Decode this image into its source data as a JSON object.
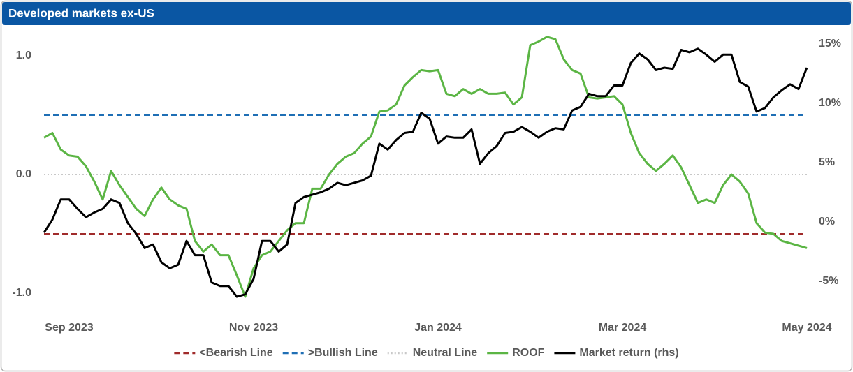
{
  "chart_data": {
    "type": "line",
    "title": "Developed markets ex-US",
    "categories": [
      null,
      null,
      null,
      "Sep 2023",
      null,
      null,
      null,
      null,
      null,
      null,
      null,
      null,
      null,
      null,
      null,
      null,
      null,
      null,
      null,
      null,
      null,
      null,
      null,
      null,
      null,
      "Nov 2023",
      null,
      null,
      null,
      null,
      null,
      null,
      null,
      null,
      null,
      null,
      null,
      null,
      null,
      null,
      null,
      null,
      null,
      null,
      null,
      null,
      null,
      "Jan 2024",
      null,
      null,
      null,
      null,
      null,
      null,
      null,
      null,
      null,
      null,
      null,
      null,
      null,
      null,
      null,
      null,
      null,
      null,
      null,
      null,
      null,
      "Mar 2024",
      null,
      null,
      null,
      null,
      null,
      null,
      null,
      null,
      null,
      null,
      null,
      null,
      null,
      null,
      null,
      null,
      null,
      null,
      null,
      null,
      null,
      "May 2024"
    ],
    "reference_lines": [
      {
        "name": "<Bearish Line",
        "color": "#a02b2b",
        "value": -0.5,
        "style": "dashed"
      },
      {
        "name": ">Bullish Line",
        "color": "#1f6fb5",
        "value": 0.5,
        "style": "dashed"
      },
      {
        "name": "Neutral Line",
        "color": "#c8c8c8",
        "value": 0.0,
        "style": "dotted"
      }
    ],
    "series": [
      {
        "name": "ROOF",
        "color": "#5bb544",
        "axis": "y",
        "values": [
          0.31,
          0.35,
          0.21,
          0.16,
          0.15,
          0.07,
          -0.06,
          -0.21,
          0.03,
          -0.09,
          -0.19,
          -0.29,
          -0.35,
          -0.21,
          -0.11,
          -0.21,
          -0.26,
          -0.29,
          -0.56,
          -0.65,
          -0.59,
          -0.68,
          -0.68,
          -0.85,
          -1.03,
          -0.79,
          -0.68,
          -0.65,
          -0.56,
          -0.47,
          -0.41,
          -0.41,
          -0.12,
          -0.12,
          0.0,
          0.09,
          0.15,
          0.18,
          0.26,
          0.32,
          0.53,
          0.54,
          0.59,
          0.75,
          0.82,
          0.88,
          0.87,
          0.88,
          0.68,
          0.66,
          0.72,
          0.68,
          0.72,
          0.68,
          0.68,
          0.69,
          0.59,
          0.65,
          1.09,
          1.12,
          1.16,
          1.14,
          0.97,
          0.88,
          0.85,
          0.65,
          0.64,
          0.65,
          0.66,
          0.59,
          0.35,
          0.18,
          0.09,
          0.03,
          0.09,
          0.16,
          0.06,
          -0.09,
          -0.24,
          -0.21,
          -0.24,
          -0.09,
          0.0,
          -0.06,
          -0.16,
          -0.41,
          -0.49,
          -0.5,
          -0.56,
          -0.58,
          -0.6,
          -0.62
        ]
      },
      {
        "name": "Market return (rhs)",
        "color": "#000000",
        "axis": "y2",
        "values": [
          -0.9,
          0.2,
          1.9,
          1.9,
          1.1,
          0.4,
          0.8,
          1.1,
          1.9,
          1.6,
          -0.1,
          -1.0,
          -2.2,
          -1.9,
          -3.4,
          -3.9,
          -3.6,
          -1.6,
          -2.8,
          -2.8,
          -5.1,
          -5.4,
          -5.4,
          -6.3,
          -6.1,
          -4.8,
          -1.6,
          -1.6,
          -2.5,
          -1.9,
          1.6,
          2.1,
          2.3,
          2.5,
          2.8,
          3.3,
          3.1,
          3.3,
          3.5,
          3.9,
          6.6,
          6.1,
          6.9,
          7.5,
          7.6,
          9.2,
          8.7,
          6.6,
          7.2,
          7.1,
          7.1,
          7.8,
          4.9,
          5.8,
          6.4,
          7.5,
          7.6,
          8.0,
          7.6,
          7.1,
          7.6,
          7.9,
          7.8,
          9.4,
          9.7,
          10.8,
          10.6,
          10.6,
          11.5,
          11.5,
          13.4,
          14.2,
          13.7,
          12.8,
          13.0,
          12.9,
          14.5,
          14.3,
          14.6,
          14.1,
          13.5,
          14.1,
          14.1,
          11.8,
          11.4,
          9.3,
          9.6,
          10.5,
          11.1,
          11.6,
          11.2,
          13.0
        ]
      }
    ],
    "ylim": [
      -1.2,
      1.2
    ],
    "yticks": [
      {
        "value": -1,
        "label": "-1.0"
      },
      {
        "value": 0,
        "label": "0.0"
      },
      {
        "value": 1,
        "label": "1.0"
      }
    ],
    "y2lim": [
      -8,
      16
    ],
    "y2ticks": [
      {
        "value": -5,
        "label": "-5%"
      },
      {
        "value": 0,
        "label": "0%"
      },
      {
        "value": 5,
        "label": "5%"
      },
      {
        "value": 10,
        "label": "10%"
      },
      {
        "value": 15,
        "label": "15%"
      }
    ],
    "legend": "bottom"
  }
}
